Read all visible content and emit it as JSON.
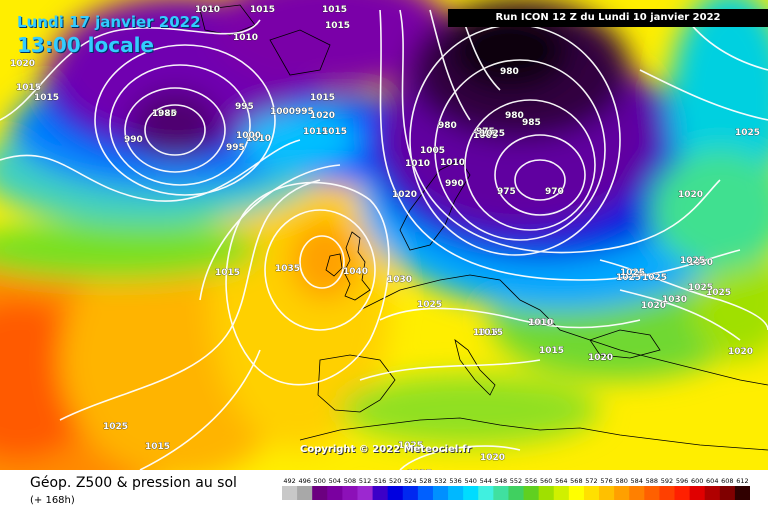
{
  "header": {
    "date_title": "Lundi 17 janvier 2022",
    "time_title": "13:00 locale",
    "run_label": "Run ICON 12 Z du Lundi 10 janvier 2022"
  },
  "copyright": "Copyright © 2022 Meteociel.fr",
  "legend": {
    "title": "Géop. Z500 & pression au sol",
    "subtitle": "(+ 168h)",
    "scale_labels": [
      "492",
      "496",
      "500",
      "504",
      "508",
      "512",
      "516",
      "520",
      "524",
      "528",
      "532",
      "536",
      "540",
      "544",
      "548",
      "552",
      "556",
      "560",
      "564",
      "568",
      "572",
      "576",
      "580",
      "584",
      "588",
      "592",
      "596",
      "600",
      "604",
      "608",
      "612"
    ],
    "scale_colors": [
      "#c8c8c8",
      "#a8a8a8",
      "#6c0080",
      "#7a00a0",
      "#8c10b8",
      "#9c28d0",
      "#3c00c8",
      "#0000e0",
      "#0028f0",
      "#0060ff",
      "#0090ff",
      "#00b8ff",
      "#00dcff",
      "#40f0e0",
      "#40e0a0",
      "#40d060",
      "#60d020",
      "#a0e000",
      "#d0f000",
      "#ffff00",
      "#ffe000",
      "#ffc000",
      "#ffa000",
      "#ff8000",
      "#ff6000",
      "#ff4000",
      "#ff2000",
      "#e00000",
      "#b00000",
      "#800000",
      "#300000"
    ]
  },
  "isobar_labels": [
    "1010",
    "1015",
    "1010",
    "1015",
    "1015",
    "1015",
    "1020",
    "1015",
    "1020",
    "1015",
    "985",
    "990",
    "995",
    "995",
    "1010",
    "1000",
    "1020",
    "1015",
    "1015",
    "1000",
    "995",
    "990",
    "1005",
    "1010",
    "1010",
    "1005",
    "975",
    "980",
    "980",
    "985",
    "980",
    "975",
    "970",
    "1020",
    "1025",
    "1035",
    "1040",
    "1015",
    "1030",
    "1030",
    "1025",
    "1015",
    "1010",
    "1015",
    "1020",
    "1025",
    "1025",
    "1025",
    "1025",
    "1025",
    "1020",
    "1030",
    "1025",
    "1020",
    "1010",
    "1015",
    "1020",
    "1025",
    "1025",
    "1020",
    "1015",
    "1025",
    "1025",
    "1020"
  ]
}
